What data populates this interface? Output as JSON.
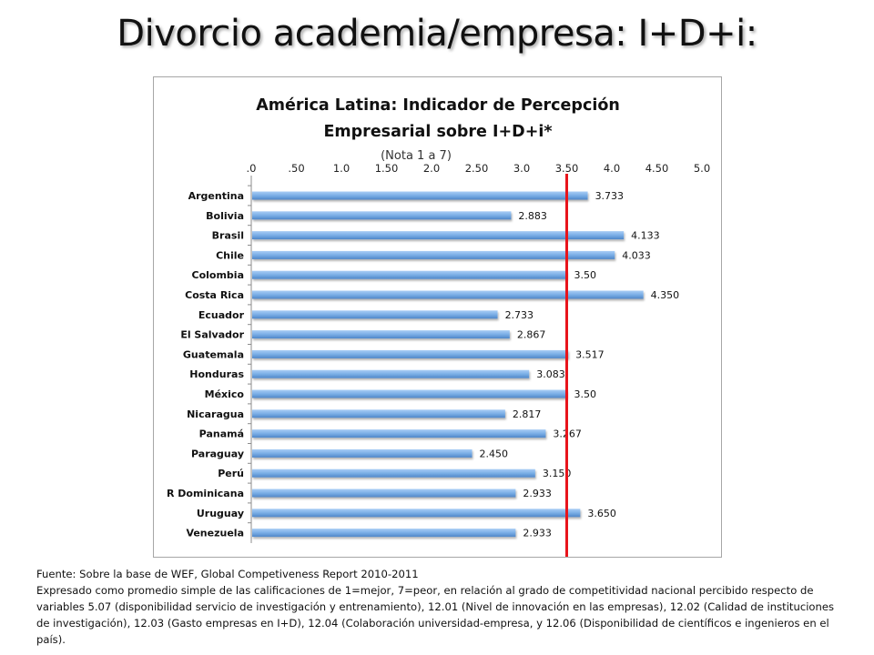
{
  "slide": {
    "title": "Divorcio academia/empresa: I+D+i:"
  },
  "chart_data": {
    "type": "bar",
    "orientation": "horizontal",
    "title_line1": "América Latina: Indicador de Percepción",
    "title_line2": "Empresarial sobre I+D+i*",
    "subtitle": "(Nota 1 a 7)",
    "x_ticks": [
      ".0",
      ".50",
      "1.0",
      "1.50",
      "2.0",
      "2.50",
      "3.0",
      "3.50",
      "4.0",
      "4.50",
      "5.0"
    ],
    "xlim": [
      0,
      5
    ],
    "x_axis_position": "top",
    "reference_line": 3.5,
    "reference_line_color": "#e8141b",
    "bar_color": "#7aaee6",
    "categories": [
      "Argentina",
      "Bolivia",
      "Brasil",
      "Chile",
      "Colombia",
      "Costa Rica",
      "Ecuador",
      "El Salvador",
      "Guatemala",
      "Honduras",
      "México",
      "Nicaragua",
      "Panamá",
      "Paraguay",
      "Perú",
      "R Dominicana",
      "Uruguay",
      "Venezuela"
    ],
    "values": [
      3.733,
      2.883,
      4.133,
      4.033,
      3.5,
      4.35,
      2.733,
      2.867,
      3.517,
      3.083,
      3.5,
      2.817,
      3.267,
      2.45,
      3.15,
      2.933,
      3.65,
      2.933
    ],
    "value_labels": [
      "3.733",
      "2.883",
      "4.133",
      "4.033",
      "3.50",
      "4.350",
      "2.733",
      "2.867",
      "3.517",
      "3.083",
      "3.50",
      "2.817",
      "3.267",
      "2.450",
      "3.150",
      "2.933",
      "3.650",
      "2.933"
    ]
  },
  "footnote": {
    "source": "Fuente: Sobre la base de WEF, Global Competiveness Report 2010-2011",
    "description": "Expresado como promedio simple de las calificaciones de 1=mejor, 7=peor, en relación al grado de competitividad nacional percibido respecto de variables 5.07 (disponibilidad servicio de investigación y entrenamiento),  12.01 (Nivel de innovación en las empresas), 12.02 (Calidad de instituciones de investigación), 12.03 (Gasto empresas en I+D), 12.04 (Colaboración universidad-empresa, y 12.06  (Disponibilidad de científicos e ingenieros en el país)."
  }
}
